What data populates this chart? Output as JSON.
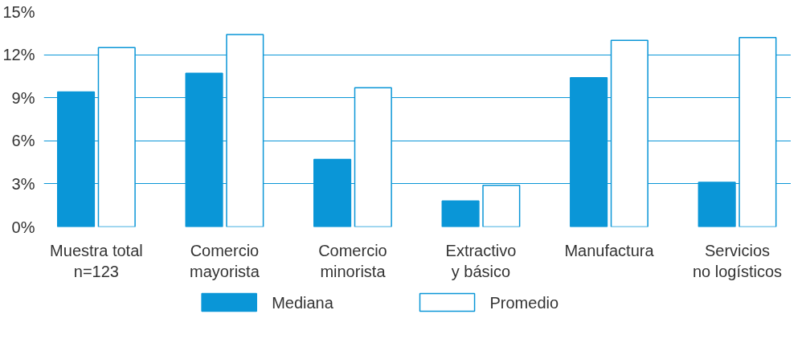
{
  "chart_data": {
    "type": "bar",
    "categories": [
      "Muestra total\nn=123",
      "Comercio\nmayorista",
      "Comercio\nminorista",
      "Extractivo\ny básico",
      "Manufactura",
      "Servicios\nno logísticos"
    ],
    "series": [
      {
        "name": "Mediana",
        "color": "#0a96d7",
        "values": [
          9.4,
          10.7,
          4.7,
          1.8,
          10.4,
          3.1
        ]
      },
      {
        "name": "Promedio",
        "color": "#ffffff",
        "values": [
          12.5,
          13.4,
          9.7,
          2.9,
          13.0,
          13.2
        ]
      }
    ],
    "ylim": [
      0,
      15
    ],
    "yticks": [
      {
        "value": 0,
        "label": "0%"
      },
      {
        "value": 3,
        "label": "3%"
      },
      {
        "value": 6,
        "label": "6%"
      },
      {
        "value": 9,
        "label": "9%"
      },
      {
        "value": 12,
        "label": "12%"
      },
      {
        "value": 15,
        "label": "15%"
      }
    ],
    "grid": "y",
    "legend": "bottom"
  }
}
